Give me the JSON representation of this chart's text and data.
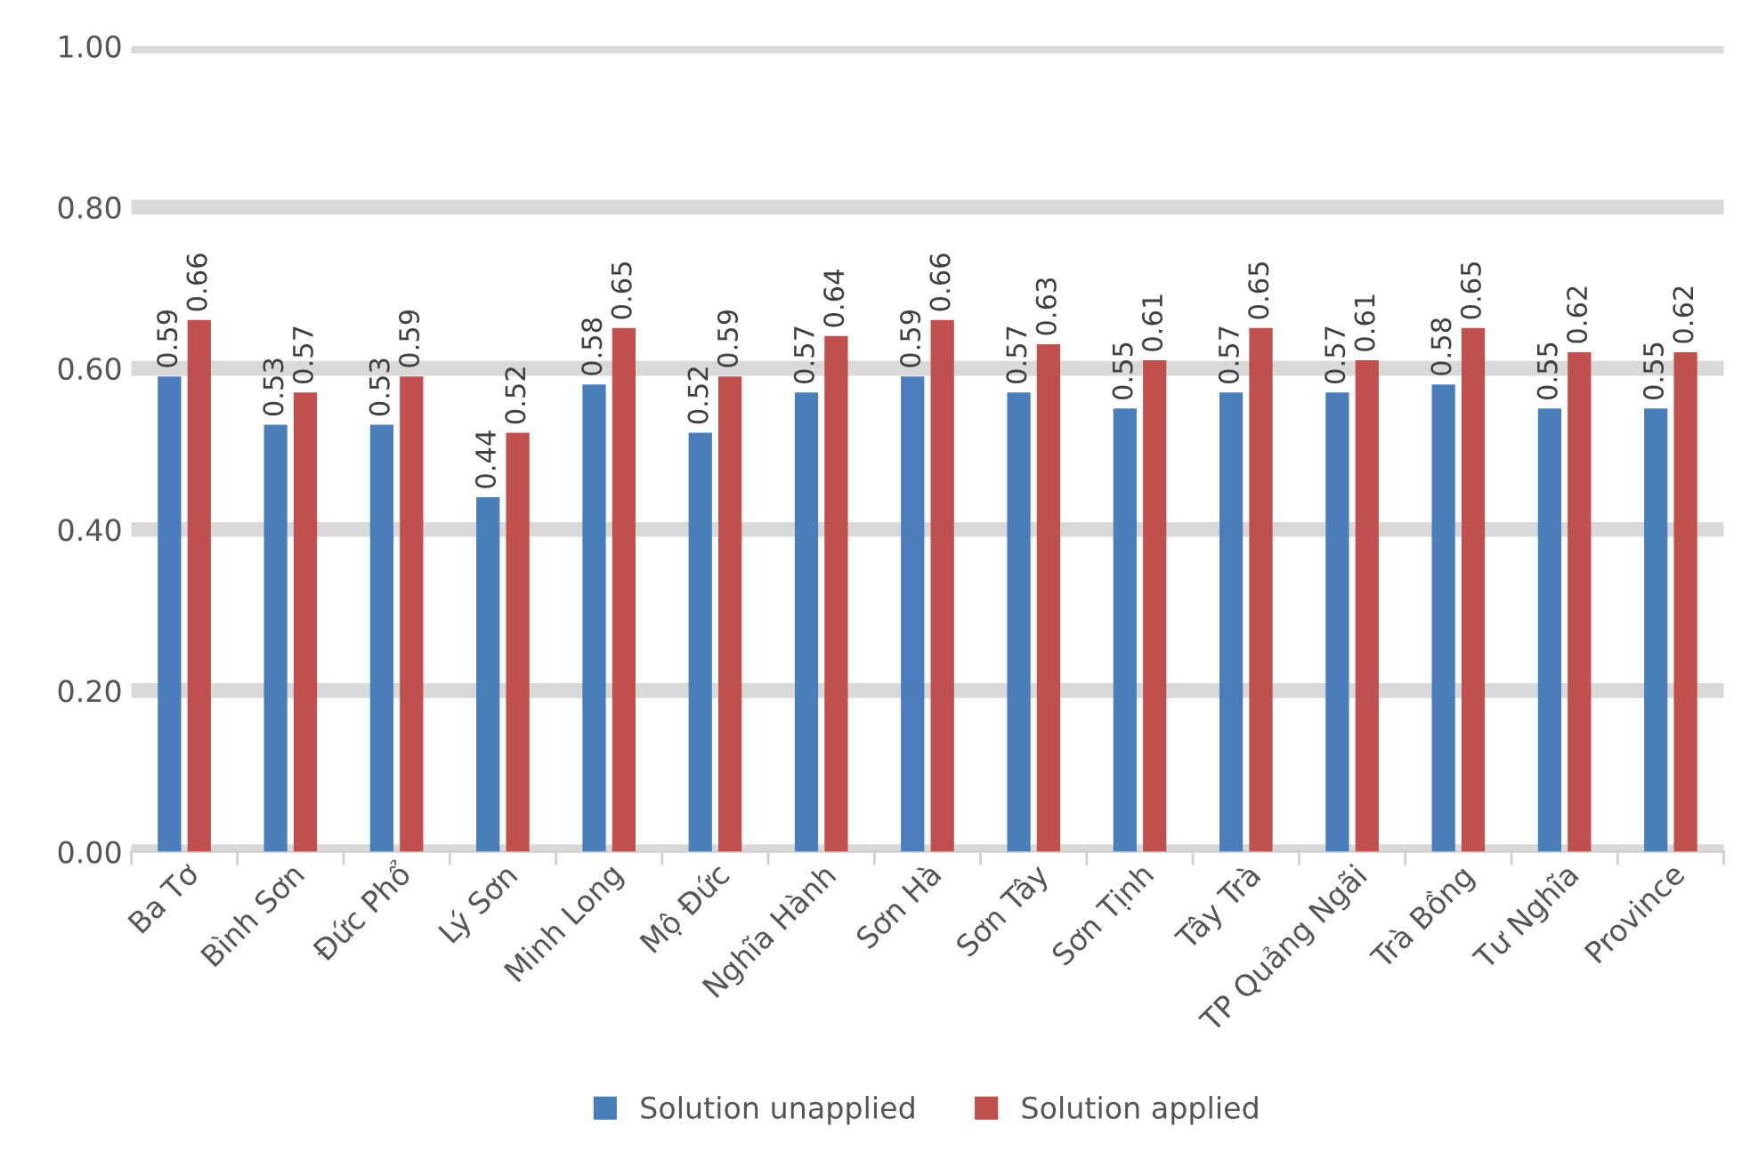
{
  "chart_data": {
    "type": "bar",
    "categories": [
      "Ba Tơ",
      "Bình Sơn",
      "Đức Phổ",
      "Lý Sơn",
      "Minh Long",
      "Mộ Đức",
      "Nghĩa Hành",
      "Sơn Hà",
      "Sơn Tây",
      "Sơn Tịnh",
      "Tây Trà",
      "TP Quảng Ngãi",
      "Trà Bồng",
      "Tư Nghĩa",
      "Province"
    ],
    "series": [
      {
        "name": "Solution unapplied",
        "color": "#4a7ebb",
        "values": [
          0.59,
          0.53,
          0.53,
          0.44,
          0.58,
          0.52,
          0.57,
          0.59,
          0.57,
          0.55,
          0.57,
          0.57,
          0.58,
          0.55,
          0.55
        ]
      },
      {
        "name": "Solution applied",
        "color": "#c0504d",
        "values": [
          0.66,
          0.57,
          0.59,
          0.52,
          0.65,
          0.59,
          0.64,
          0.66,
          0.63,
          0.61,
          0.65,
          0.61,
          0.65,
          0.62,
          0.62
        ]
      }
    ],
    "ylim": [
      0,
      1
    ],
    "yticks": [
      {
        "value": 0,
        "label": "0.00"
      },
      {
        "value": 0.2,
        "label": "0.20"
      },
      {
        "value": 0.4,
        "label": "0.40"
      },
      {
        "value": 0.6,
        "label": "0.60"
      },
      {
        "value": 0.8,
        "label": "0.80"
      },
      {
        "value": 1,
        "label": "1.00"
      }
    ],
    "grid": "y",
    "legend": "bottom",
    "data_labels": true
  }
}
